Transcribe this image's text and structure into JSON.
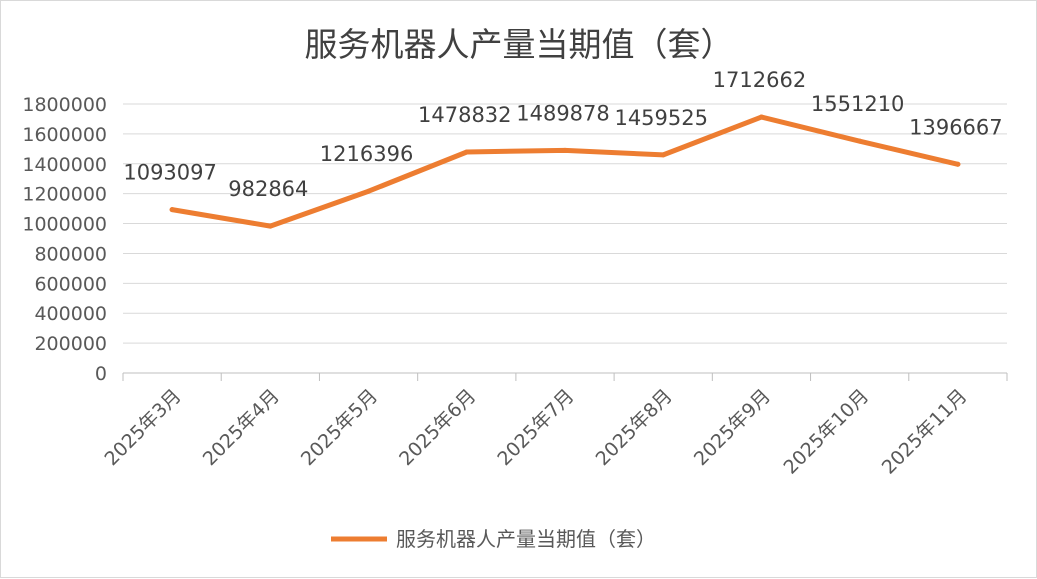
{
  "chart_data": {
    "type": "line",
    "title": "服务机器人产量当期值（套）",
    "xlabel": "",
    "ylabel": "",
    "categories": [
      "2025年3月",
      "2025年4月",
      "2025年5月",
      "2025年6月",
      "2025年7月",
      "2025年8月",
      "2025年9月",
      "2025年10月",
      "2025年11月"
    ],
    "series": [
      {
        "name": "服务机器人产量当期值（套）",
        "values": [
          1093097,
          982864,
          1216396,
          1478832,
          1489878,
          1459525,
          1712662,
          1551210,
          1396667
        ],
        "labels": [
          "1093097",
          "982864",
          "1216396",
          "1478832",
          "1489878",
          "1459525",
          "1712662",
          "1551210",
          "1396667"
        ]
      }
    ],
    "ylim": [
      0,
      1800000
    ],
    "yticks": [
      "0",
      "200000",
      "400000",
      "600000",
      "800000",
      "1000000",
      "1200000",
      "1400000",
      "1600000",
      "1800000"
    ],
    "grid": true,
    "legend_position": "bottom",
    "colors": {
      "line": "#ED7D31",
      "grid": "#d9d9d9",
      "axis": "#bfbfbf"
    }
  }
}
